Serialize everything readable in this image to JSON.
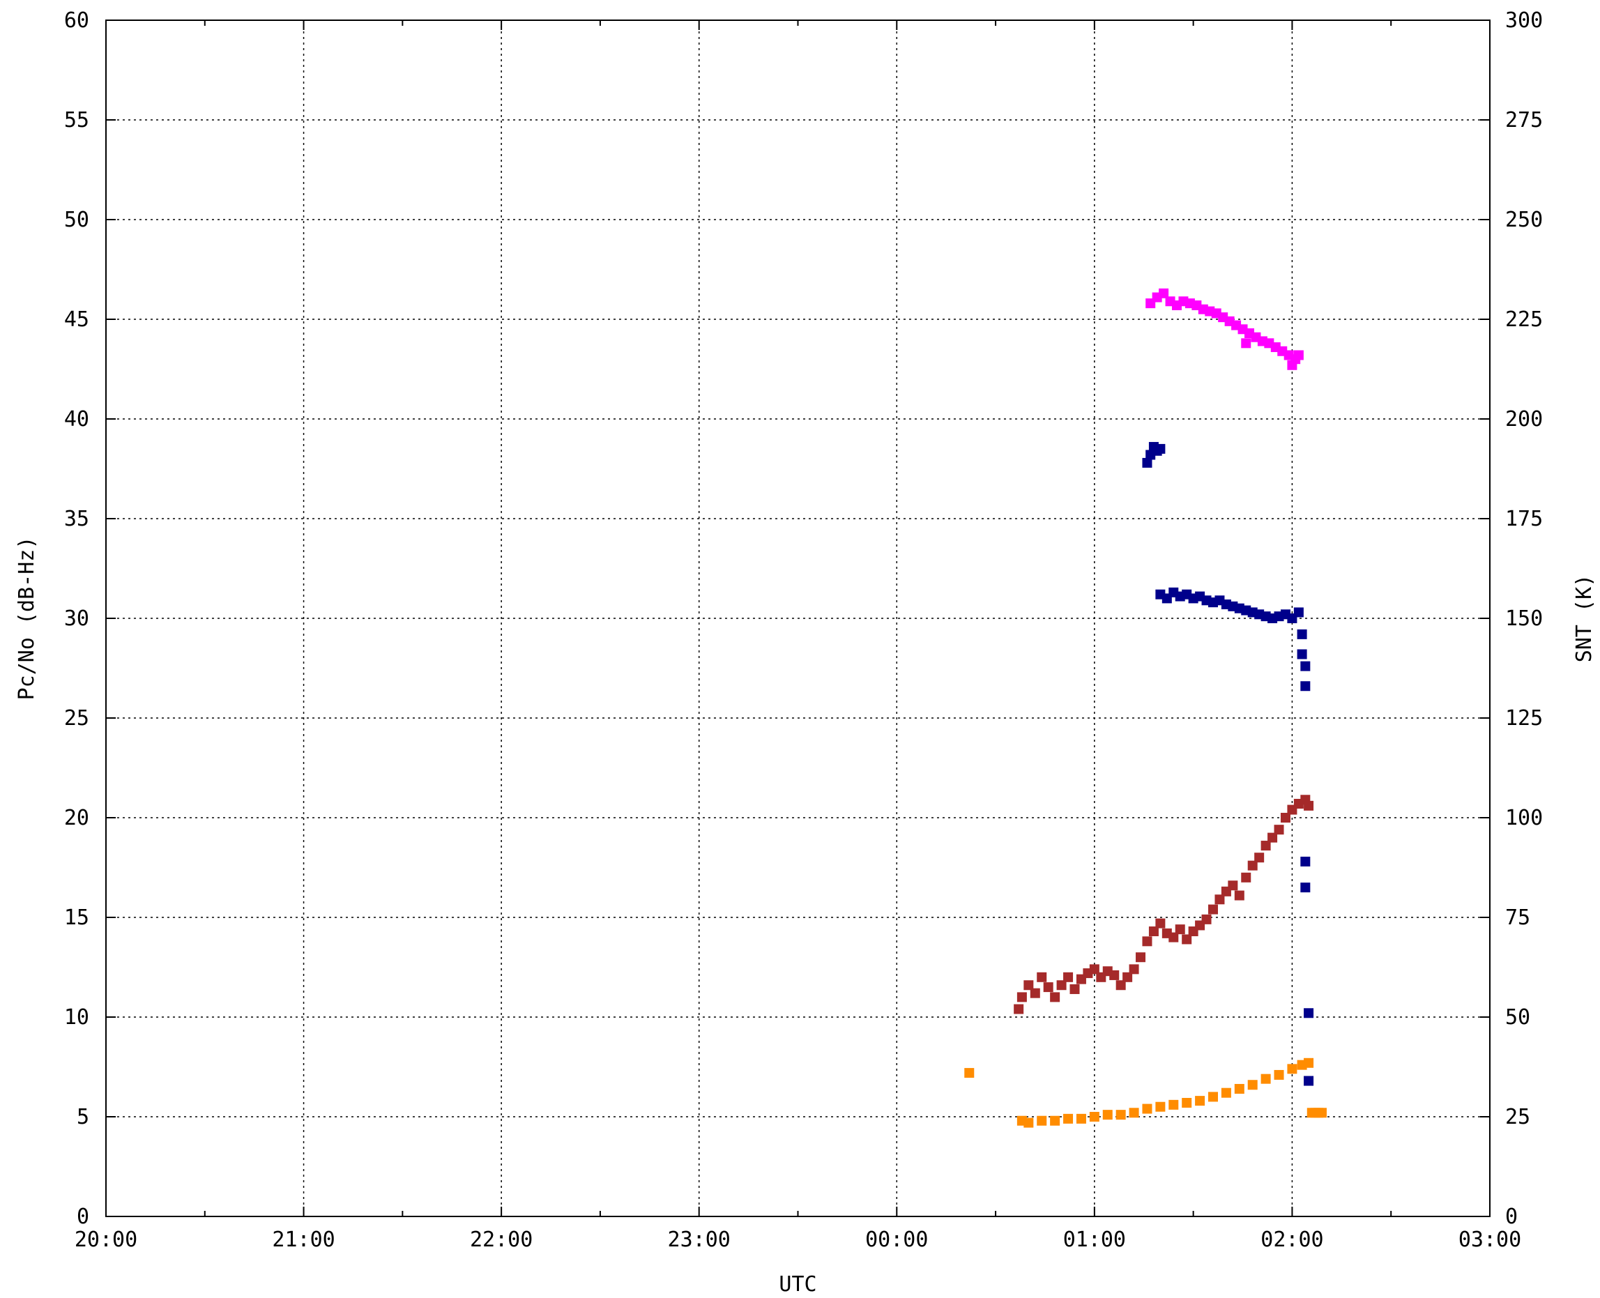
{
  "chart_data": {
    "type": "scatter",
    "xlabel": "UTC",
    "ylabel": "Pc/No (dB-Hz)",
    "ylabel_right": "SNT (K)",
    "x_ticks": [
      "20:00",
      "21:00",
      "22:00",
      "23:00",
      "00:00",
      "01:00",
      "02:00",
      "03:00"
    ],
    "y_ticks": [
      "0",
      "5",
      "10",
      "15",
      "20",
      "25",
      "30",
      "35",
      "40",
      "45",
      "50",
      "55",
      "60"
    ],
    "y2_ticks": [
      "0",
      "25",
      "50",
      "75",
      "100",
      "125",
      "150",
      "175",
      "200",
      "225",
      "250",
      "275",
      "300"
    ],
    "xlim": [
      "20:00",
      "03:00"
    ],
    "ylim": [
      0,
      60
    ],
    "y2lim": [
      0,
      300
    ],
    "grid": true,
    "series": [
      {
        "color": "#ff00ff",
        "axis": "left",
        "points": [
          [
            "01:17",
            45.8
          ],
          [
            "01:19",
            46.1
          ],
          [
            "01:21",
            46.3
          ],
          [
            "01:23",
            45.9
          ],
          [
            "01:25",
            45.7
          ],
          [
            "01:27",
            45.9
          ],
          [
            "01:29",
            45.8
          ],
          [
            "01:31",
            45.7
          ],
          [
            "01:33",
            45.5
          ],
          [
            "01:35",
            45.4
          ],
          [
            "01:37",
            45.3
          ],
          [
            "01:39",
            45.1
          ],
          [
            "01:41",
            44.9
          ],
          [
            "01:43",
            44.7
          ],
          [
            "01:45",
            44.5
          ],
          [
            "01:46",
            43.8
          ],
          [
            "01:47",
            44.3
          ],
          [
            "01:49",
            44.1
          ],
          [
            "01:51",
            43.9
          ],
          [
            "01:53",
            43.8
          ],
          [
            "01:55",
            43.6
          ],
          [
            "01:57",
            43.4
          ],
          [
            "01:59",
            43.2
          ],
          [
            "02:00",
            42.7
          ],
          [
            "02:01",
            43.0
          ],
          [
            "02:02",
            43.2
          ]
        ]
      },
      {
        "color": "#00008b",
        "axis": "left",
        "points": [
          [
            "01:16",
            37.8
          ],
          [
            "01:17",
            38.2
          ],
          [
            "01:18",
            38.6
          ],
          [
            "01:19",
            38.4
          ],
          [
            "01:20",
            38.5
          ],
          [
            "01:20",
            31.2
          ],
          [
            "01:22",
            31.0
          ],
          [
            "01:24",
            31.3
          ],
          [
            "01:26",
            31.1
          ],
          [
            "01:28",
            31.2
          ],
          [
            "01:30",
            31.0
          ],
          [
            "01:32",
            31.1
          ],
          [
            "01:34",
            30.9
          ],
          [
            "01:36",
            30.8
          ],
          [
            "01:38",
            30.9
          ],
          [
            "01:40",
            30.7
          ],
          [
            "01:42",
            30.6
          ],
          [
            "01:44",
            30.5
          ],
          [
            "01:46",
            30.4
          ],
          [
            "01:48",
            30.3
          ],
          [
            "01:50",
            30.2
          ],
          [
            "01:52",
            30.1
          ],
          [
            "01:54",
            30.0
          ],
          [
            "01:56",
            30.1
          ],
          [
            "01:58",
            30.2
          ],
          [
            "02:00",
            30.0
          ],
          [
            "02:02",
            30.3
          ],
          [
            "02:03",
            29.2
          ],
          [
            "02:03",
            28.2
          ],
          [
            "02:04",
            27.6
          ],
          [
            "02:04",
            26.6
          ],
          [
            "02:04",
            17.8
          ],
          [
            "02:04",
            16.5
          ],
          [
            "02:05",
            10.2
          ],
          [
            "02:05",
            6.8
          ]
        ]
      },
      {
        "color": "#a52a2a",
        "axis": "left",
        "points": [
          [
            "00:37",
            10.4
          ],
          [
            "00:38",
            11.0
          ],
          [
            "00:40",
            11.6
          ],
          [
            "00:42",
            11.2
          ],
          [
            "00:44",
            12.0
          ],
          [
            "00:46",
            11.5
          ],
          [
            "00:48",
            11.0
          ],
          [
            "00:50",
            11.6
          ],
          [
            "00:52",
            12.0
          ],
          [
            "00:54",
            11.4
          ],
          [
            "00:56",
            11.9
          ],
          [
            "00:58",
            12.2
          ],
          [
            "01:00",
            12.4
          ],
          [
            "01:02",
            12.0
          ],
          [
            "01:04",
            12.3
          ],
          [
            "01:06",
            12.1
          ],
          [
            "01:08",
            11.6
          ],
          [
            "01:10",
            12.0
          ],
          [
            "01:12",
            12.4
          ],
          [
            "01:14",
            13.0
          ],
          [
            "01:16",
            13.8
          ],
          [
            "01:18",
            14.3
          ],
          [
            "01:20",
            14.7
          ],
          [
            "01:22",
            14.2
          ],
          [
            "01:24",
            14.0
          ],
          [
            "01:26",
            14.4
          ],
          [
            "01:28",
            13.9
          ],
          [
            "01:30",
            14.3
          ],
          [
            "01:32",
            14.6
          ],
          [
            "01:34",
            14.9
          ],
          [
            "01:36",
            15.4
          ],
          [
            "01:38",
            15.9
          ],
          [
            "01:40",
            16.3
          ],
          [
            "01:42",
            16.6
          ],
          [
            "01:44",
            16.1
          ],
          [
            "01:46",
            17.0
          ],
          [
            "01:48",
            17.6
          ],
          [
            "01:50",
            18.0
          ],
          [
            "01:52",
            18.6
          ],
          [
            "01:54",
            19.0
          ],
          [
            "01:56",
            19.4
          ],
          [
            "01:58",
            20.0
          ],
          [
            "02:00",
            20.4
          ],
          [
            "02:02",
            20.7
          ],
          [
            "02:04",
            20.9
          ],
          [
            "02:05",
            20.6
          ]
        ]
      },
      {
        "color": "#ff8c00",
        "axis": "left",
        "points": [
          [
            "00:22",
            7.2
          ],
          [
            "00:38",
            4.8
          ],
          [
            "00:40",
            4.7
          ],
          [
            "00:44",
            4.8
          ],
          [
            "00:48",
            4.8
          ],
          [
            "00:52",
            4.9
          ],
          [
            "00:56",
            4.9
          ],
          [
            "01:00",
            5.0
          ],
          [
            "01:04",
            5.1
          ],
          [
            "01:08",
            5.1
          ],
          [
            "01:12",
            5.2
          ],
          [
            "01:16",
            5.4
          ],
          [
            "01:20",
            5.5
          ],
          [
            "01:24",
            5.6
          ],
          [
            "01:28",
            5.7
          ],
          [
            "01:32",
            5.8
          ],
          [
            "01:36",
            6.0
          ],
          [
            "01:40",
            6.2
          ],
          [
            "01:44",
            6.4
          ],
          [
            "01:48",
            6.6
          ],
          [
            "01:52",
            6.9
          ],
          [
            "01:56",
            7.1
          ],
          [
            "02:00",
            7.4
          ],
          [
            "02:03",
            7.6
          ],
          [
            "02:05",
            7.7
          ],
          [
            "02:06",
            5.2
          ],
          [
            "02:07",
            5.2
          ],
          [
            "02:08",
            5.2
          ],
          [
            "02:09",
            5.2
          ]
        ]
      }
    ]
  }
}
